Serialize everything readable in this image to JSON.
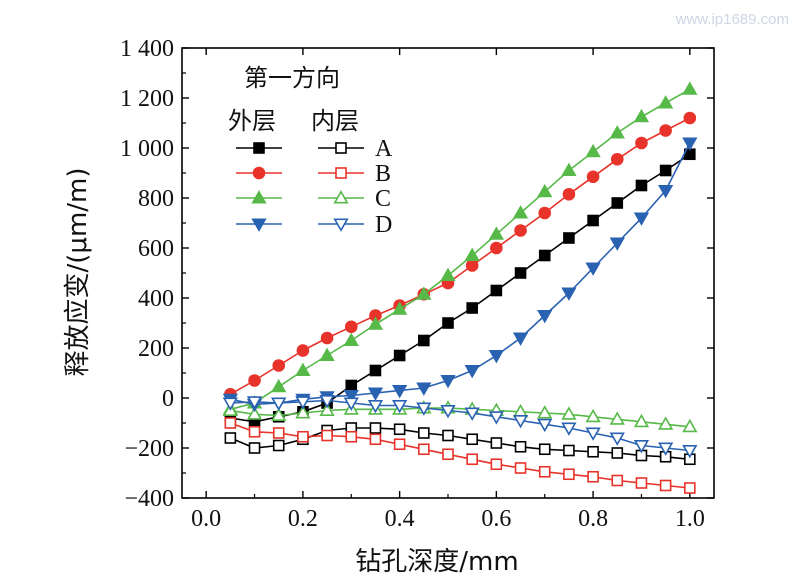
{
  "watermark": "www.ip1689.com",
  "chart_data": {
    "type": "line",
    "title": "",
    "xlabel": "钻孔深度/mm",
    "ylabel": "释放应变/(μm/m)",
    "xlim": [
      -0.05,
      1.05
    ],
    "ylim": [
      -400,
      1400
    ],
    "xticks": [
      0.0,
      0.2,
      0.4,
      0.6,
      0.8,
      1.0
    ],
    "xtick_labels": [
      "0.0",
      "0.2",
      "0.4",
      "0.6",
      "0.8",
      "1.0"
    ],
    "yticks": [
      -400,
      -200,
      0,
      200,
      400,
      600,
      800,
      1000,
      1200,
      1400
    ],
    "ytick_labels": [
      "−400",
      "−200",
      "0",
      "200",
      "400",
      "600",
      "800",
      "1 000",
      "1 200",
      "1 400"
    ],
    "grid": false,
    "legend": {
      "position": "top-left",
      "title": "第一方向",
      "outer_label": "外层",
      "inner_label": "内层",
      "entries": [
        "A",
        "B",
        "C",
        "D"
      ]
    },
    "x": [
      0.05,
      0.1,
      0.15,
      0.2,
      0.25,
      0.3,
      0.35,
      0.4,
      0.45,
      0.5,
      0.55,
      0.6,
      0.65,
      0.7,
      0.75,
      0.8,
      0.85,
      0.9,
      0.95,
      1.0
    ],
    "series": [
      {
        "name": "A 外层",
        "group": "A",
        "layer": "outer",
        "color": "#000000",
        "marker": "square",
        "filled": true,
        "values": [
          -80,
          -95,
          -75,
          -55,
          -20,
          50,
          110,
          170,
          230,
          300,
          360,
          430,
          500,
          570,
          640,
          710,
          780,
          850,
          910,
          975
        ]
      },
      {
        "name": "A 内层",
        "group": "A",
        "layer": "inner",
        "color": "#000000",
        "marker": "square",
        "filled": false,
        "values": [
          -160,
          -200,
          -190,
          -165,
          -130,
          -120,
          -120,
          -125,
          -140,
          -150,
          -165,
          -180,
          -195,
          -205,
          -210,
          -215,
          -220,
          -230,
          -235,
          -245
        ]
      },
      {
        "name": "B 外层",
        "group": "B",
        "layer": "outer",
        "color": "#e8332a",
        "marker": "circle",
        "filled": true,
        "values": [
          15,
          70,
          130,
          190,
          240,
          285,
          330,
          370,
          415,
          460,
          530,
          600,
          670,
          740,
          815,
          885,
          955,
          1020,
          1070,
          1120
        ]
      },
      {
        "name": "B 内层",
        "group": "B",
        "layer": "inner",
        "color": "#e8332a",
        "marker": "square",
        "filled": false,
        "values": [
          -100,
          -135,
          -140,
          -155,
          -150,
          -155,
          -165,
          -185,
          -205,
          -225,
          -245,
          -265,
          -280,
          -295,
          -305,
          -315,
          -330,
          -340,
          -350,
          -360
        ]
      },
      {
        "name": "C 外层",
        "group": "C",
        "layer": "outer",
        "color": "#56b948",
        "marker": "triangle-up",
        "filled": true,
        "values": [
          -45,
          -20,
          45,
          110,
          170,
          230,
          295,
          355,
          415,
          490,
          570,
          655,
          740,
          825,
          910,
          985,
          1060,
          1125,
          1180,
          1235
        ]
      },
      {
        "name": "C 内层",
        "group": "C",
        "layer": "inner",
        "color": "#56b948",
        "marker": "triangle-up",
        "filled": false,
        "values": [
          -50,
          -65,
          -70,
          -60,
          -50,
          -45,
          -45,
          -45,
          -40,
          -40,
          -45,
          -50,
          -55,
          -60,
          -65,
          -75,
          -85,
          -95,
          -105,
          -115
        ]
      },
      {
        "name": "D 外层",
        "group": "D",
        "layer": "outer",
        "color": "#2a62b2",
        "marker": "triangle-down",
        "filled": true,
        "values": [
          -5,
          -25,
          -20,
          -5,
          5,
          10,
          20,
          30,
          40,
          70,
          110,
          170,
          240,
          330,
          420,
          520,
          620,
          720,
          830,
          1020
        ]
      },
      {
        "name": "D 内层",
        "group": "D",
        "layer": "inner",
        "color": "#2a62b2",
        "marker": "triangle-down",
        "filled": false,
        "values": [
          -20,
          -15,
          -20,
          -15,
          -10,
          -20,
          -30,
          -30,
          -40,
          -50,
          -60,
          -75,
          -90,
          -105,
          -120,
          -140,
          -160,
          -190,
          -200,
          -210
        ]
      }
    ]
  }
}
